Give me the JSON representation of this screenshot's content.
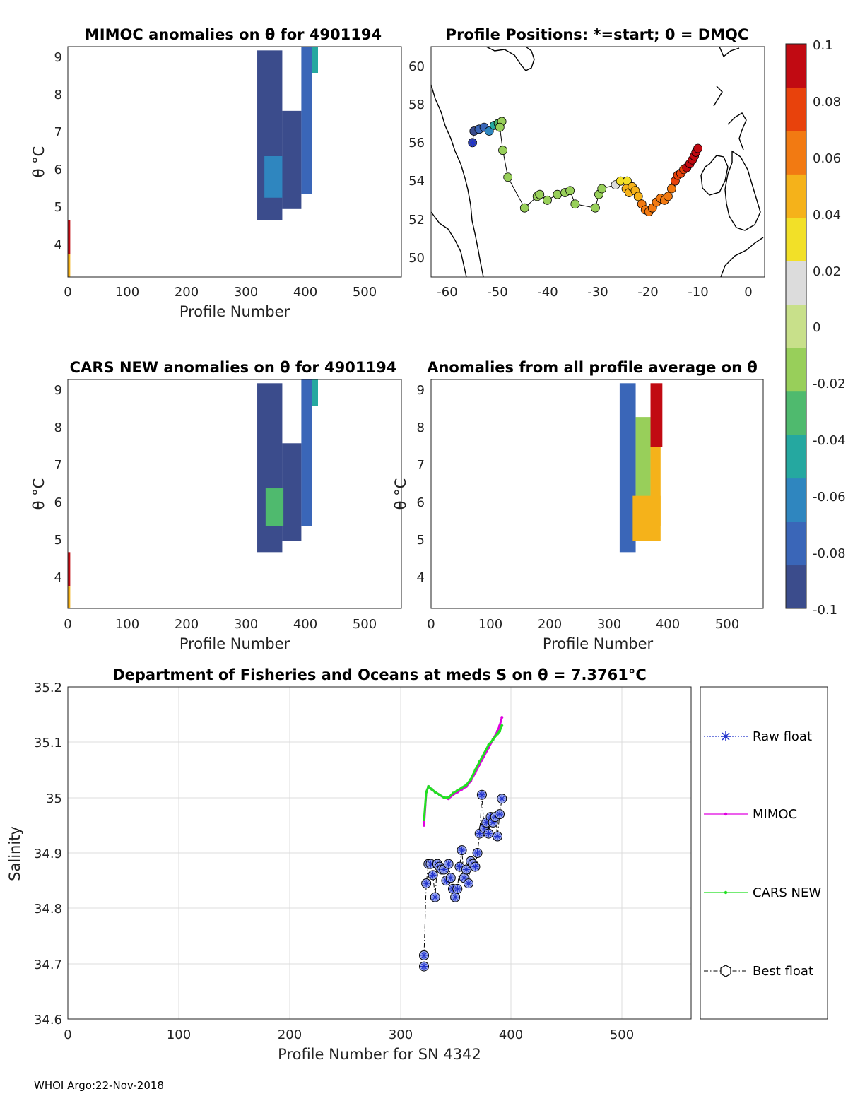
{
  "footer": "WHOI Argo:22-Nov-2018",
  "panels": {
    "mimoc": {
      "title": "MIMOC anomalies on θ  for 4901194",
      "xlabel": "Profile Number",
      "ylabel": "θ °C",
      "xticks": [
        "0",
        "100",
        "200",
        "300",
        "400",
        "500"
      ],
      "yticks": [
        "4",
        "5",
        "6",
        "7",
        "8",
        "9"
      ]
    },
    "positions": {
      "title": "Profile Positions: *=start; 0 = DMQC",
      "xticks": [
        "-60",
        "-50",
        "-40",
        "-30",
        "-20",
        "-10",
        "0"
      ],
      "yticks": [
        "50",
        "52",
        "54",
        "56",
        "58",
        "60"
      ]
    },
    "cars": {
      "title": "CARS NEW anomalies on θ for 4901194",
      "xlabel": "Profile Number",
      "ylabel": "θ °C",
      "xticks": [
        "0",
        "100",
        "200",
        "300",
        "400",
        "500"
      ],
      "yticks": [
        "4",
        "5",
        "6",
        "7",
        "8",
        "9"
      ]
    },
    "allavg": {
      "title": "Anomalies from all profile average on θ",
      "xlabel": "Profile Number",
      "ylabel": "θ °C",
      "xticks": [
        "0",
        "100",
        "200",
        "300",
        "400",
        "500"
      ],
      "yticks": [
        "4",
        "5",
        "6",
        "7",
        "8",
        "9"
      ]
    },
    "colorbar": {
      "ticks": [
        "0.1",
        "0.08",
        "0.06",
        "0.04",
        "0.02",
        "0",
        "-0.02",
        "-0.04",
        "-0.06",
        "-0.08",
        "-0.1"
      ],
      "colors": [
        "#3b4c8c",
        "#3a66b8",
        "#2f86bf",
        "#25a8a0",
        "#4fba6e",
        "#98cf5a",
        "#c8e08a",
        "#dcdcdc",
        "#f2e028",
        "#f5b21a",
        "#f27a12",
        "#e8420c",
        "#c10a12"
      ]
    },
    "salinity": {
      "title": "Department of Fisheries and Oceans at meds S on θ = 7.3761°C",
      "xlabel": "Profile Number for SN 4342",
      "ylabel": "Salinity",
      "xticks": [
        "0",
        "100",
        "200",
        "300",
        "400",
        "500"
      ],
      "yticks": [
        "34.6",
        "34.7",
        "34.8",
        "34.9",
        "35",
        "35.1",
        "35.2"
      ],
      "legend": [
        "Raw float",
        "MIMOC",
        "CARS NEW",
        "Best float"
      ]
    }
  },
  "chart_data": [
    {
      "type": "heatmap",
      "title": "MIMOC anomalies on θ  for 4901194",
      "xlabel": "Profile Number",
      "ylabel": "θ °C",
      "xlim": [
        0,
        560
      ],
      "ylim": [
        3.2,
        9.3
      ],
      "clim": [
        -0.1,
        0.1
      ],
      "regions": [
        {
          "x": [
            318,
            360
          ],
          "y": [
            4.7,
            9.2
          ],
          "value": -0.09
        },
        {
          "x": [
            360,
            392
          ],
          "y": [
            5.0,
            7.6
          ],
          "value": -0.09
        },
        {
          "x": [
            392,
            410
          ],
          "y": [
            5.4,
            9.3
          ],
          "value": -0.08
        },
        {
          "x": [
            330,
            360
          ],
          "y": [
            5.3,
            6.4
          ],
          "value": -0.06
        },
        {
          "x": [
            410,
            420
          ],
          "y": [
            8.6,
            9.3
          ],
          "value": -0.04
        },
        {
          "x": [
            0,
            4
          ],
          "y": [
            3.8,
            4.7
          ],
          "value": 0.1
        },
        {
          "x": [
            0,
            4
          ],
          "y": [
            3.2,
            3.8
          ],
          "value": 0.04
        }
      ]
    },
    {
      "type": "scatter",
      "title": "Profile Positions: *=start; 0 = DMQC",
      "xlim": [
        -63,
        3
      ],
      "ylim": [
        49,
        61
      ],
      "track_lon": [
        -54.8,
        -54.5,
        -53.5,
        -52.5,
        -51.5,
        -50.5,
        -49.7,
        -49.0,
        -49.4,
        -48.8,
        -47.8,
        -44.5,
        -42,
        -41.5,
        -40,
        -38,
        -36.5,
        -35.5,
        -34.5,
        -30.5,
        -29.8,
        -29.2,
        -26.5,
        -25.5,
        -24.2,
        -24.4,
        -23.8,
        -23.2,
        -22.6,
        -22.0,
        -21.3,
        -20.6,
        -19.9,
        -19.2,
        -18.4,
        -17.6,
        -16.8,
        -16.1,
        -15.4,
        -14.7,
        -14.2,
        -13.6,
        -13.0,
        -12.4,
        -11.8,
        -11.3,
        -10.9,
        -10.6,
        -10.2
      ],
      "track_lat": [
        56.0,
        56.6,
        56.7,
        56.8,
        56.6,
        56.9,
        57.0,
        57.1,
        56.8,
        55.6,
        54.2,
        52.6,
        53.2,
        53.3,
        53.0,
        53.3,
        53.4,
        53.5,
        52.8,
        52.6,
        53.3,
        53.6,
        53.8,
        54.0,
        54.0,
        53.6,
        53.4,
        53.7,
        53.5,
        53.2,
        52.8,
        52.5,
        52.4,
        52.6,
        52.9,
        53.1,
        53.0,
        53.2,
        53.6,
        54.0,
        54.3,
        54.4,
        54.6,
        54.7,
        54.9,
        55.1,
        55.3,
        55.5,
        55.7
      ],
      "track_value": [
        -0.09,
        -0.09,
        -0.08,
        -0.07,
        -0.06,
        -0.05,
        -0.03,
        -0.02,
        -0.02,
        -0.02,
        -0.02,
        -0.02,
        -0.02,
        -0.02,
        -0.02,
        -0.02,
        -0.02,
        -0.02,
        -0.02,
        -0.02,
        -0.02,
        -0.01,
        0.02,
        0.03,
        0.03,
        0.04,
        0.04,
        0.05,
        0.05,
        0.05,
        0.06,
        0.06,
        0.06,
        0.06,
        0.06,
        0.06,
        0.06,
        0.06,
        0.06,
        0.07,
        0.07,
        0.08,
        0.08,
        0.09,
        0.09,
        0.1,
        0.1,
        0.1,
        0.1
      ]
    },
    {
      "type": "heatmap",
      "title": "CARS NEW anomalies on θ for 4901194",
      "xlabel": "Profile Number",
      "ylabel": "θ °C",
      "xlim": [
        0,
        560
      ],
      "ylim": [
        3.2,
        9.3
      ],
      "clim": [
        -0.1,
        0.1
      ],
      "regions": [
        {
          "x": [
            318,
            360
          ],
          "y": [
            4.7,
            9.2
          ],
          "value": -0.09
        },
        {
          "x": [
            360,
            392
          ],
          "y": [
            5.0,
            7.6
          ],
          "value": -0.09
        },
        {
          "x": [
            392,
            410
          ],
          "y": [
            5.4,
            9.3
          ],
          "value": -0.08
        },
        {
          "x": [
            332,
            362
          ],
          "y": [
            5.4,
            6.4
          ],
          "value": -0.03
        },
        {
          "x": [
            410,
            420
          ],
          "y": [
            8.6,
            9.3
          ],
          "value": -0.04
        },
        {
          "x": [
            0,
            4
          ],
          "y": [
            3.8,
            4.7
          ],
          "value": 0.1
        },
        {
          "x": [
            0,
            4
          ],
          "y": [
            3.2,
            3.8
          ],
          "value": 0.04
        }
      ]
    },
    {
      "type": "heatmap",
      "title": "Anomalies from all profile average on θ",
      "xlabel": "Profile Number",
      "ylabel": "θ °C",
      "xlim": [
        0,
        560
      ],
      "ylim": [
        3.2,
        9.3
      ],
      "clim": [
        -0.1,
        0.1
      ],
      "regions": [
        {
          "x": [
            318,
            345
          ],
          "y": [
            4.7,
            9.2
          ],
          "value": -0.07
        },
        {
          "x": [
            345,
            370
          ],
          "y": [
            5.0,
            8.3
          ],
          "value": -0.02
        },
        {
          "x": [
            370,
            387
          ],
          "y": [
            5.4,
            7.5
          ],
          "value": 0.04
        },
        {
          "x": [
            340,
            387
          ],
          "y": [
            5.0,
            6.2
          ],
          "value": 0.04
        },
        {
          "x": [
            370,
            390
          ],
          "y": [
            7.5,
            9.2
          ],
          "value": 0.1
        }
      ]
    },
    {
      "type": "line",
      "title": "Department of Fisheries and Oceans at meds S on θ = 7.3761°C",
      "xlabel": "Profile Number for SN 4342",
      "ylabel": "Salinity",
      "xlim": [
        0,
        560
      ],
      "ylim": [
        34.6,
        35.2
      ],
      "grid": true,
      "legend_position": "right",
      "series": [
        {
          "name": "MIMOC",
          "x": [
            320,
            322,
            324,
            327,
            330,
            334,
            338,
            342,
            346,
            350,
            354,
            358,
            362,
            366,
            370,
            374,
            378,
            382,
            386,
            388,
            390
          ],
          "y": [
            34.95,
            35.01,
            35.02,
            35.015,
            35.01,
            35.005,
            35.0,
            34.998,
            35.005,
            35.01,
            35.015,
            35.02,
            35.03,
            35.045,
            35.06,
            35.075,
            35.09,
            35.105,
            35.12,
            35.13,
            35.145
          ]
        },
        {
          "name": "CARS NEW",
          "x": [
            320,
            322,
            324,
            327,
            330,
            334,
            338,
            342,
            346,
            350,
            354,
            358,
            362,
            366,
            370,
            374,
            378,
            382,
            386,
            388,
            390
          ],
          "y": [
            34.96,
            35.01,
            35.02,
            35.015,
            35.01,
            35.005,
            35.0,
            35.0,
            35.008,
            35.013,
            35.018,
            35.023,
            35.033,
            35.05,
            35.065,
            35.08,
            35.095,
            35.105,
            35.115,
            35.12,
            35.13
          ]
        },
        {
          "name": "Best float",
          "x": [
            320,
            320,
            322,
            324,
            326,
            328,
            330,
            332,
            334,
            336,
            338,
            340,
            342,
            344,
            346,
            348,
            350,
            352,
            354,
            356,
            358,
            360,
            362,
            364,
            366,
            368,
            370,
            372,
            374,
            376,
            378,
            380,
            382,
            384,
            386,
            388,
            390
          ],
          "y": [
            34.695,
            34.715,
            34.845,
            34.88,
            34.88,
            34.86,
            34.82,
            34.88,
            34.875,
            34.87,
            34.87,
            34.85,
            34.88,
            34.855,
            34.835,
            34.82,
            34.835,
            34.875,
            34.905,
            34.855,
            34.87,
            34.845,
            34.885,
            34.88,
            34.875,
            34.9,
            34.935,
            35.005,
            34.945,
            34.955,
            34.935,
            34.965,
            34.955,
            34.965,
            34.93,
            34.97,
            34.998
          ]
        }
      ]
    }
  ]
}
